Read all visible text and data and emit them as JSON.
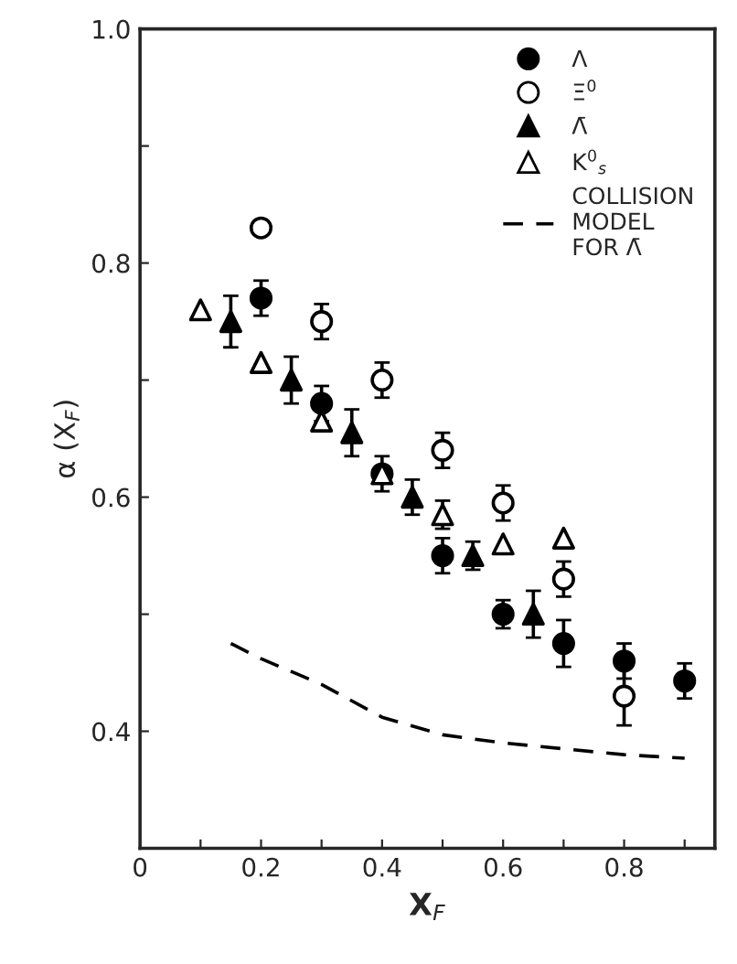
{
  "chart_data": {
    "type": "scatter",
    "xlabel": "X$_{F}$",
    "ylabel": "α (X$_{F}$)",
    "xlim": [
      0,
      0.95
    ],
    "ylim": [
      0.3,
      1.0
    ],
    "xticks": [
      0,
      {
        "value": 0.1,
        "label": null
      },
      {
        "value": 0.2,
        "label": "0.2"
      },
      {
        "value": 0.3,
        "label": null
      },
      {
        "value": 0.4,
        "label": "0.4"
      },
      {
        "value": 0.5,
        "label": null
      },
      {
        "value": 0.6,
        "label": "0.6"
      },
      {
        "value": 0.7,
        "label": null
      },
      {
        "value": 0.8,
        "label": "0.8"
      },
      {
        "value": 0.9,
        "label": null
      }
    ],
    "yticks": [
      {
        "value": 0.4,
        "label": "0.4"
      },
      {
        "value": 0.5,
        "label": null
      },
      {
        "value": 0.6,
        "label": "0.6"
      },
      {
        "value": 0.7,
        "label": null
      },
      {
        "value": 0.8,
        "label": "0.8"
      },
      {
        "value": 0.9,
        "label": null
      },
      {
        "value": 1.0,
        "label": "1.0"
      }
    ],
    "grid": false,
    "legend": "top right",
    "series": [
      {
        "name": "Λ",
        "color": "#000000",
        "marker": "circle",
        "x": [
          0.2,
          0.3,
          0.4,
          0.5,
          0.6,
          0.7,
          0.8,
          0.9
        ],
        "values": [
          0.77,
          0.68,
          0.62,
          0.55,
          0.5,
          0.475,
          0.46,
          0.443
        ],
        "errors": [
          0.015,
          0.015,
          0.015,
          0.015,
          0.012,
          0.02,
          0.015,
          0.015
        ]
      },
      {
        "name": "Ξ$^{0}$",
        "color": "#ffffff",
        "marker": "circle",
        "x": [
          0.2,
          0.3,
          0.4,
          0.5,
          0.6,
          0.7,
          0.8
        ],
        "values": [
          0.83,
          0.75,
          0.7,
          0.64,
          0.595,
          0.53,
          0.43
        ],
        "errors": [
          null,
          0.015,
          0.015,
          0.015,
          0.015,
          0.015,
          0.025
        ]
      },
      {
        "name": "Λ̄",
        "color": "#000000",
        "marker": "triangle",
        "x": [
          0.15,
          0.25,
          0.35,
          0.45,
          0.55,
          0.65
        ],
        "values": [
          0.75,
          0.7,
          0.655,
          0.6,
          0.55,
          0.5
        ],
        "errors": [
          0.022,
          0.02,
          0.02,
          0.015,
          0.012,
          0.02
        ]
      },
      {
        "name": "K$^{0}$$_{s}$",
        "color": "#ffffff",
        "marker": "triangle",
        "x": [
          0.1,
          0.2,
          0.3,
          0.4,
          0.5,
          0.6,
          0.7
        ],
        "values": [
          0.76,
          0.715,
          0.665,
          0.62,
          0.585,
          0.56,
          0.565
        ],
        "errors": [
          null,
          null,
          null,
          null,
          0.012,
          null,
          null
        ]
      },
      {
        "name": "COLLISION\nMODEL\nFOR Λ̄",
        "type": "line",
        "line_style": "dashed",
        "marker": "none",
        "color": "#000000",
        "x": [
          0.15,
          0.2,
          0.3,
          0.4,
          0.5,
          0.6,
          0.7,
          0.8,
          0.9
        ],
        "values": [
          0.475,
          0.462,
          0.44,
          0.412,
          0.397,
          0.39,
          0.385,
          0.38,
          0.377
        ]
      }
    ]
  }
}
